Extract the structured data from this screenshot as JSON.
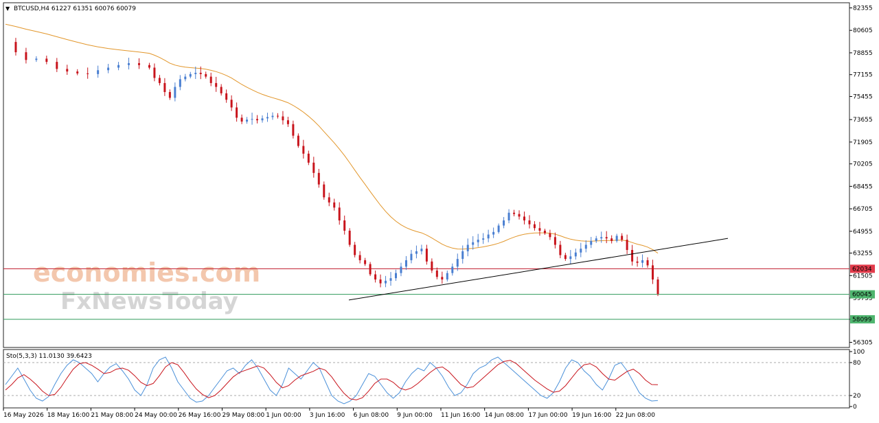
{
  "chart_data": {
    "type": "candlestick",
    "symbol_header": "BTCUSD,H4  61227 61351 60076 60079",
    "price_axis": {
      "ticks": [
        "82355",
        "80605",
        "78855",
        "77155",
        "75455",
        "73655",
        "71905",
        "70205",
        "68455",
        "66705",
        "64955",
        "63255",
        "61505",
        "59755",
        "58099",
        "56305"
      ],
      "ylim": [
        55905,
        82755
      ]
    },
    "time_axis": {
      "ticks": [
        "16 May 2026",
        "18 May 16:00",
        "21 May 08:00",
        "24 May 00:00",
        "26 May 16:00",
        "29 May 08:00",
        "1 Jun 00:00",
        "3 Jun 16:00",
        "6 Jun 08:00",
        "9 Jun 00:00",
        "11 Jun 16:00",
        "14 Jun 08:00",
        "17 Jun 00:00",
        "19 Jun 16:00",
        "22 Jun 08:00"
      ]
    },
    "horizontal_levels": [
      {
        "value": 62034,
        "label": "62034",
        "color": "#c0192b"
      },
      {
        "value": 60045,
        "label": "60045",
        "color": "#2e9a5a"
      },
      {
        "value": 58099,
        "label": "58099",
        "color": "#2e9a5a"
      }
    ],
    "close_path": [
      [
        0,
        79700
      ],
      [
        4,
        78900
      ],
      [
        8,
        78300
      ],
      [
        12,
        78400
      ],
      [
        16,
        78150
      ],
      [
        20,
        77600
      ],
      [
        24,
        77400
      ],
      [
        28,
        77250
      ],
      [
        32,
        77200
      ],
      [
        36,
        77500
      ],
      [
        40,
        77700
      ],
      [
        44,
        77900
      ],
      [
        48,
        78050
      ],
      [
        52,
        77900
      ],
      [
        56,
        77700
      ],
      [
        58,
        76900
      ],
      [
        60,
        76500
      ],
      [
        62,
        75800
      ],
      [
        64,
        75350
      ],
      [
        66,
        76200
      ],
      [
        68,
        76800
      ],
      [
        70,
        77000
      ],
      [
        72,
        77200
      ],
      [
        74,
        77300
      ],
      [
        76,
        77200
      ],
      [
        78,
        77000
      ],
      [
        80,
        76500
      ],
      [
        82,
        76200
      ],
      [
        84,
        75700
      ],
      [
        86,
        75200
      ],
      [
        88,
        74600
      ],
      [
        90,
        73800
      ],
      [
        92,
        73500
      ],
      [
        94,
        73650
      ],
      [
        96,
        73700
      ],
      [
        98,
        73600
      ],
      [
        100,
        73750
      ],
      [
        102,
        73850
      ],
      [
        104,
        73950
      ],
      [
        106,
        73900
      ],
      [
        108,
        73600
      ],
      [
        110,
        73300
      ],
      [
        112,
        72400
      ],
      [
        114,
        71600
      ],
      [
        116,
        71000
      ],
      [
        118,
        70300
      ],
      [
        120,
        69500
      ],
      [
        122,
        68600
      ],
      [
        124,
        67600
      ],
      [
        126,
        67200
      ],
      [
        128,
        66800
      ],
      [
        130,
        65800
      ],
      [
        132,
        65000
      ],
      [
        134,
        63900
      ],
      [
        136,
        63100
      ],
      [
        138,
        62700
      ],
      [
        140,
        62400
      ],
      [
        142,
        61600
      ],
      [
        144,
        61200
      ],
      [
        146,
        60900
      ],
      [
        148,
        61100
      ],
      [
        150,
        61300
      ],
      [
        152,
        61700
      ],
      [
        154,
        62200
      ],
      [
        156,
        62700
      ],
      [
        158,
        63200
      ],
      [
        160,
        63400
      ],
      [
        162,
        63600
      ],
      [
        164,
        62600
      ],
      [
        166,
        61900
      ],
      [
        168,
        61400
      ],
      [
        170,
        61200
      ],
      [
        172,
        61700
      ],
      [
        174,
        62200
      ],
      [
        176,
        62800
      ],
      [
        178,
        63400
      ],
      [
        180,
        63900
      ],
      [
        182,
        64100
      ],
      [
        184,
        64300
      ],
      [
        186,
        64400
      ],
      [
        188,
        64700
      ],
      [
        190,
        64900
      ],
      [
        192,
        65400
      ],
      [
        194,
        65800
      ],
      [
        196,
        66400
      ],
      [
        198,
        66300
      ],
      [
        200,
        66100
      ],
      [
        202,
        65800
      ],
      [
        204,
        65500
      ],
      [
        206,
        65200
      ],
      [
        208,
        65000
      ],
      [
        210,
        64800
      ],
      [
        212,
        64500
      ],
      [
        214,
        63900
      ],
      [
        216,
        63100
      ],
      [
        218,
        62800
      ],
      [
        220,
        63000
      ],
      [
        222,
        63300
      ],
      [
        224,
        63600
      ],
      [
        226,
        63900
      ],
      [
        228,
        64200
      ],
      [
        230,
        64400
      ],
      [
        232,
        64500
      ],
      [
        234,
        64400
      ],
      [
        236,
        64200
      ],
      [
        238,
        64600
      ],
      [
        240,
        64300
      ],
      [
        242,
        63500
      ],
      [
        244,
        62600
      ],
      [
        246,
        62500
      ],
      [
        248,
        62700
      ],
      [
        250,
        62300
      ],
      [
        252,
        61200
      ],
      [
        254,
        60079
      ]
    ],
    "trendline": [
      [
        0,
        59600
      ],
      [
        556,
        64400
      ]
    ],
    "stochastic": {
      "label": "Sto(5,3,3) 11.0130 39.6423",
      "k_value": "11.0130",
      "d_value": "39.6423",
      "levels": [
        "100",
        "80",
        "20",
        "0"
      ],
      "ylim": [
        0,
        100
      ],
      "k_series": [
        40,
        55,
        70,
        50,
        30,
        15,
        10,
        18,
        40,
        60,
        75,
        85,
        80,
        70,
        60,
        45,
        60,
        72,
        78,
        65,
        50,
        30,
        20,
        40,
        70,
        85,
        90,
        70,
        45,
        30,
        15,
        8,
        10,
        20,
        35,
        50,
        65,
        70,
        60,
        75,
        85,
        70,
        50,
        30,
        20,
        40,
        70,
        60,
        50,
        65,
        80,
        70,
        45,
        20,
        10,
        5,
        10,
        20,
        40,
        60,
        55,
        40,
        25,
        15,
        25,
        45,
        60,
        70,
        65,
        80,
        70,
        55,
        35,
        20,
        25,
        40,
        60,
        70,
        75,
        85,
        90,
        80,
        70,
        60,
        50,
        40,
        30,
        20,
        15,
        25,
        45,
        70,
        85,
        80,
        65,
        55,
        40,
        30,
        50,
        75,
        80,
        65,
        45,
        25,
        15,
        10,
        11
      ],
      "d_series": [
        30,
        40,
        52,
        58,
        50,
        40,
        28,
        20,
        22,
        35,
        52,
        68,
        78,
        80,
        75,
        68,
        60,
        62,
        68,
        70,
        66,
        56,
        44,
        38,
        42,
        56,
        72,
        80,
        76,
        62,
        46,
        32,
        22,
        16,
        20,
        30,
        42,
        54,
        62,
        66,
        70,
        74,
        70,
        58,
        44,
        34,
        38,
        48,
        56,
        60,
        64,
        70,
        66,
        54,
        38,
        24,
        14,
        12,
        16,
        28,
        42,
        50,
        50,
        44,
        34,
        30,
        34,
        42,
        52,
        62,
        70,
        72,
        64,
        52,
        40,
        34,
        36,
        46,
        56,
        66,
        76,
        82,
        84,
        78,
        68,
        58,
        48,
        40,
        32,
        26,
        28,
        38,
        52,
        66,
        76,
        78,
        72,
        60,
        50,
        48,
        56,
        64,
        68,
        60,
        48,
        40,
        39.6
      ]
    }
  },
  "watermark": {
    "line1": "economies.com",
    "line2": "FxNewsToday"
  }
}
